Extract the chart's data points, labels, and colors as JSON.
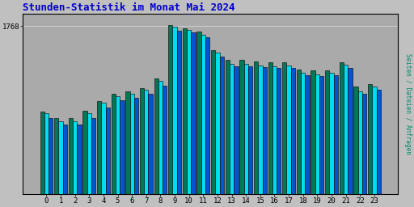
{
  "title": "Stunden-Statistik im Monat Mai 2024",
  "title_color": "#0000cc",
  "title_fontsize": 9,
  "ylabel_right": "Seiten / Dateien / Anfragen",
  "ylabel_right_color": "#008866",
  "categories": [
    0,
    1,
    2,
    3,
    4,
    5,
    6,
    7,
    8,
    9,
    10,
    11,
    12,
    13,
    14,
    15,
    16,
    17,
    18,
    19,
    20,
    21,
    22,
    23
  ],
  "bar_teal": [
    870,
    800,
    800,
    880,
    980,
    1060,
    1080,
    1120,
    1220,
    1780,
    1750,
    1710,
    1520,
    1410,
    1410,
    1395,
    1390,
    1390,
    1310,
    1300,
    1300,
    1385,
    1130,
    1160
  ],
  "bar_cyan": [
    850,
    770,
    770,
    850,
    960,
    1035,
    1060,
    1100,
    1190,
    1760,
    1730,
    1680,
    1495,
    1370,
    1370,
    1355,
    1350,
    1355,
    1280,
    1265,
    1275,
    1360,
    1085,
    1130
  ],
  "bar_blue": [
    800,
    730,
    730,
    800,
    910,
    990,
    1010,
    1060,
    1140,
    1720,
    1700,
    1650,
    1450,
    1345,
    1345,
    1335,
    1330,
    1330,
    1250,
    1240,
    1250,
    1330,
    1060,
    1100
  ],
  "color_teal": "#007755",
  "color_cyan": "#00ddee",
  "color_blue": "#0055cc",
  "bar_width": 0.3,
  "ylim_max": 1900,
  "ytick_value": 1768,
  "bg_color": "#c0c0c0",
  "plot_bg_color": "#aaaaaa",
  "grid_color": "#d0d0d0"
}
